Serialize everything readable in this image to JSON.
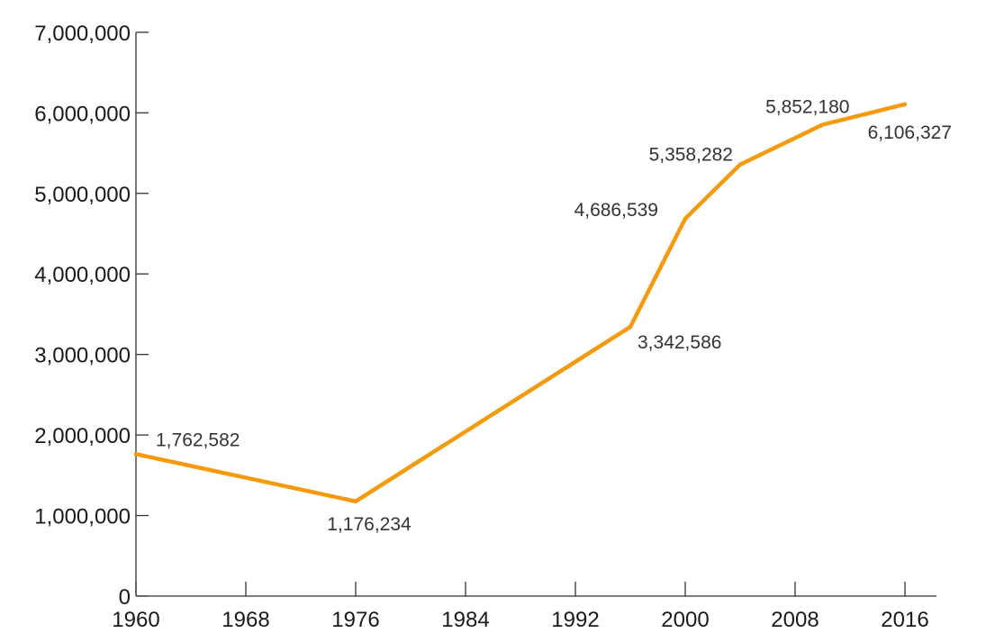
{
  "chart_data": {
    "type": "line",
    "title": "",
    "xlabel": "",
    "ylabel": "",
    "xlim": [
      1960,
      2019
    ],
    "ylim": [
      0,
      7000000
    ],
    "x_ticks": [
      1960,
      1968,
      1976,
      1984,
      1992,
      2000,
      2008,
      2016
    ],
    "y_ticks": [
      0,
      1000000,
      2000000,
      3000000,
      4000000,
      5000000,
      6000000,
      7000000
    ],
    "x_tick_labels": [
      "1960",
      "1968",
      "1976",
      "1984",
      "1992",
      "2000",
      "2008",
      "2016"
    ],
    "y_tick_labels": [
      "0",
      "1,000,000",
      "2,000,000",
      "3,000,000",
      "4,000,000",
      "5,000,000",
      "6,000,000",
      "7,000,000"
    ],
    "grid": false,
    "color": "#f59a0c",
    "series": [
      {
        "x": [
          1960,
          1976,
          1996,
          2000,
          2004,
          2010,
          2016
        ],
        "y": [
          1762582,
          1176234,
          3342586,
          4686539,
          5358282,
          5852180,
          6106327
        ],
        "labels": [
          "1,762,582",
          "1,176,234",
          "3,342,586",
          "4,686,539",
          "5,358,282",
          "5,852,180",
          "6,106,327"
        ]
      }
    ]
  }
}
